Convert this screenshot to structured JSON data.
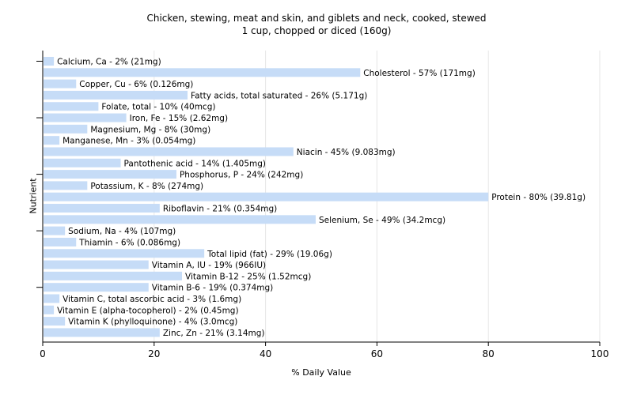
{
  "chart_data": {
    "type": "bar",
    "orientation": "horizontal",
    "title": "Chicken, stewing, meat and skin, and giblets and neck, cooked, stewed",
    "subtitle": "1 cup, chopped or diced (160g)",
    "xlabel": "% Daily Value",
    "ylabel": "Nutrient",
    "xlim": [
      0,
      100
    ],
    "xticks": [
      "0",
      "20",
      "40",
      "60",
      "80",
      "100"
    ],
    "grid": "vertical",
    "bar_color": "#c6dcf7",
    "categories": [
      "Calcium, Ca",
      "Cholesterol",
      "Copper, Cu",
      "Fatty acids, total saturated",
      "Folate, total",
      "Iron, Fe",
      "Magnesium, Mg",
      "Manganese, Mn",
      "Niacin",
      "Pantothenic acid",
      "Phosphorus, P",
      "Potassium, K",
      "Protein",
      "Riboflavin",
      "Selenium, Se",
      "Sodium, Na",
      "Thiamin",
      "Total lipid (fat)",
      "Vitamin A, IU",
      "Vitamin B-12",
      "Vitamin B-6",
      "Vitamin C, total ascorbic acid",
      "Vitamin E (alpha-tocopherol)",
      "Vitamin K (phylloquinone)",
      "Zinc, Zn"
    ],
    "values": [
      2,
      57,
      6,
      26,
      10,
      15,
      8,
      3,
      45,
      14,
      24,
      8,
      80,
      21,
      49,
      4,
      6,
      29,
      19,
      25,
      19,
      3,
      2,
      4,
      21
    ],
    "labels": [
      "Calcium, Ca - 2% (21mg)",
      "Cholesterol - 57% (171mg)",
      "Copper, Cu - 6% (0.126mg)",
      "Fatty acids, total saturated - 26% (5.171g)",
      "Folate, total - 10% (40mcg)",
      "Iron, Fe - 15% (2.62mg)",
      "Magnesium, Mg - 8% (30mg)",
      "Manganese, Mn - 3% (0.054mg)",
      "Niacin - 45% (9.083mg)",
      "Pantothenic acid - 14% (1.405mg)",
      "Phosphorus, P - 24% (242mg)",
      "Potassium, K - 8% (274mg)",
      "Protein - 80% (39.81g)",
      "Riboflavin - 21% (0.354mg)",
      "Selenium, Se - 49% (34.2mcg)",
      "Sodium, Na - 4% (107mg)",
      "Thiamin - 6% (0.086mg)",
      "Total lipid (fat) - 29% (19.06g)",
      "Vitamin A, IU - 19% (966IU)",
      "Vitamin B-12 - 25% (1.52mcg)",
      "Vitamin B-6 - 19% (0.374mg)",
      "Vitamin C, total ascorbic acid - 3% (1.6mg)",
      "Vitamin E (alpha-tocopherol) - 2% (0.45mg)",
      "Vitamin K (phylloquinone) - 4% (3.0mcg)",
      "Zinc, Zn - 21% (3.14mg)"
    ]
  }
}
